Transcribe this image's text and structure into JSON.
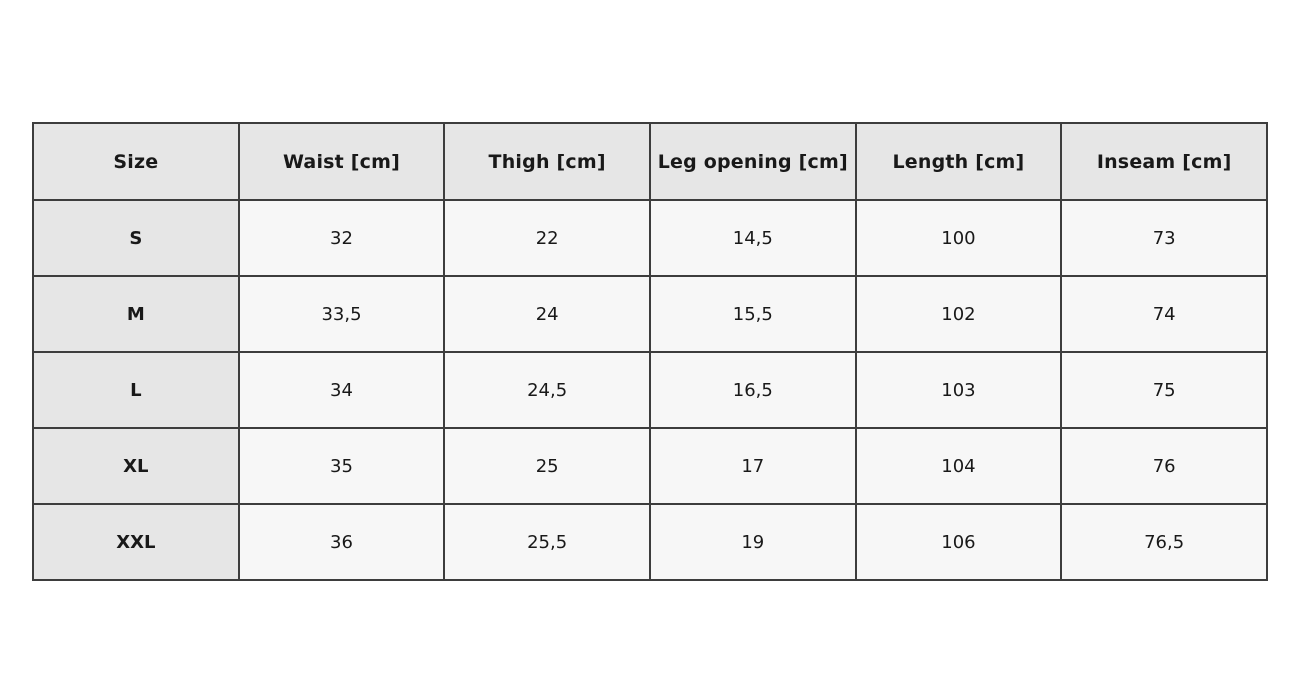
{
  "table": {
    "title": "size-chart",
    "columns": [
      "Size",
      "Waist [cm]",
      "Thigh [cm]",
      "Leg opening [cm]",
      "Length [cm]",
      "Inseam [cm]"
    ],
    "rows": [
      [
        "S",
        "32",
        "22",
        "14,5",
        "100",
        "73"
      ],
      [
        "M",
        "33,5",
        "24",
        "15,5",
        "102",
        "74"
      ],
      [
        "L",
        "34",
        "24,5",
        "16,5",
        "103",
        "75"
      ],
      [
        "XL",
        "35",
        "25",
        "17",
        "104",
        "76"
      ],
      [
        "XXL",
        "36",
        "25,5",
        "19",
        "106",
        "76,5"
      ]
    ],
    "colors": {
      "header_bg": "#e6e6e6",
      "cell_bg": "#f7f7f7",
      "border": "#3d3d3d",
      "text": "#191919",
      "page_bg": "#ffffff"
    }
  }
}
